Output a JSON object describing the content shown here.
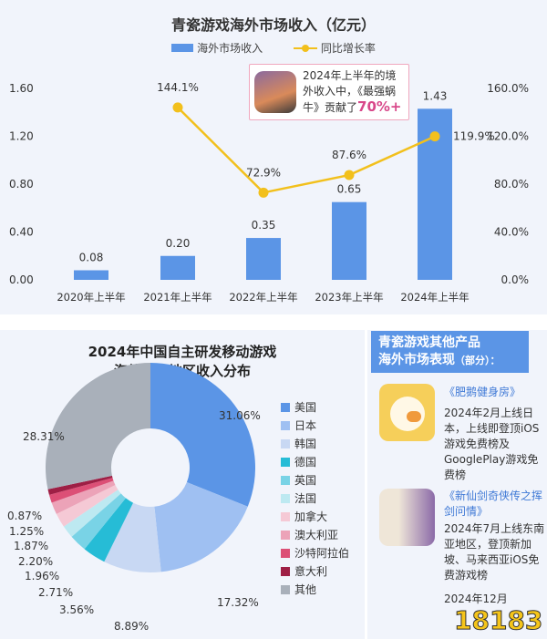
{
  "chart_data": [
    {
      "type": "bar+line",
      "title": "青瓷游戏海外市场收入（亿元）",
      "categories": [
        "2020年上半年",
        "2021年上半年",
        "2022年上半年",
        "2023年上半年",
        "2024年上半年"
      ],
      "series": [
        {
          "name": "海外市场收入",
          "type": "bar",
          "axis": "left",
          "values": [
            0.08,
            0.2,
            0.35,
            0.65,
            1.43
          ],
          "labels": [
            "0.08",
            "0.20",
            "0.35",
            "0.65",
            "1.43"
          ],
          "color": "#5b95e6"
        },
        {
          "name": "同比增长率",
          "type": "line",
          "axis": "right",
          "values": [
            null,
            144.1,
            72.9,
            87.6,
            119.9
          ],
          "labels": [
            "",
            "144.1%",
            "72.9%",
            "87.6%",
            "119.9%"
          ],
          "color": "#f2c01c"
        }
      ],
      "ylim_left": [
        0,
        1.6
      ],
      "yticks_left": [
        "0.00",
        "0.40",
        "0.80",
        "1.20",
        "1.60"
      ],
      "ylim_right": [
        0,
        160
      ],
      "yticks_right": [
        "0.0%",
        "40.0%",
        "80.0%",
        "120.0%",
        "160.0%"
      ],
      "legend_placement": "top-center",
      "grid": false,
      "annotation": {
        "text1": "2024年上半年的境外收入中，《最强蜗牛》贡献了",
        "highlight": "70%+"
      }
    },
    {
      "type": "pie",
      "donut": true,
      "title_line1": "2024年中国自主研发移动游戏",
      "title_line2": "海外重点地区收入分布",
      "legend_placement": "right",
      "slices": [
        {
          "name": "美国",
          "value": 31.06,
          "label": "31.06%",
          "color": "#5b95e6"
        },
        {
          "name": "日本",
          "value": 17.32,
          "label": "17.32%",
          "color": "#9fc0f2"
        },
        {
          "name": "韩国",
          "value": 8.89,
          "label": "8.89%",
          "color": "#c8d8f3"
        },
        {
          "name": "德国",
          "value": 3.56,
          "label": "3.56%",
          "color": "#26bcd6"
        },
        {
          "name": "英国",
          "value": 2.71,
          "label": "2.71%",
          "color": "#79d3e6"
        },
        {
          "name": "法国",
          "value": 1.96,
          "label": "1.96%",
          "color": "#bde9f1"
        },
        {
          "name": "加拿大",
          "value": 2.2,
          "label": "2.20%",
          "color": "#f5c9d5"
        },
        {
          "name": "澳大利亚",
          "value": 1.87,
          "label": "1.87%",
          "color": "#eca3b8"
        },
        {
          "name": "沙特阿拉伯",
          "value": 1.25,
          "label": "1.25%",
          "color": "#dc4f76"
        },
        {
          "name": "意大利",
          "value": 0.87,
          "label": "0.87%",
          "color": "#9e1f45"
        },
        {
          "name": "其他",
          "value": 28.31,
          "label": "28.31%",
          "color": "#a9b0ba"
        }
      ]
    }
  ],
  "side": {
    "header_line1": "青瓷游戏其他产品",
    "header_line2": "海外市场表现",
    "header_note": "（部分）：",
    "games": [
      {
        "name": "《肥鹅健身房》",
        "desc": "2024年2月上线日本，上线即登顶iOS游戏免费榜及GooglePlay游戏免费榜"
      },
      {
        "name": "《新仙剑奇侠传之挥剑问情》",
        "desc": "2024年7月上线东南亚地区，登顶新加坡、马来西亚iOS免费游戏榜"
      },
      {
        "name": "",
        "desc": "2024年12月"
      }
    ],
    "watermark": "18183"
  }
}
